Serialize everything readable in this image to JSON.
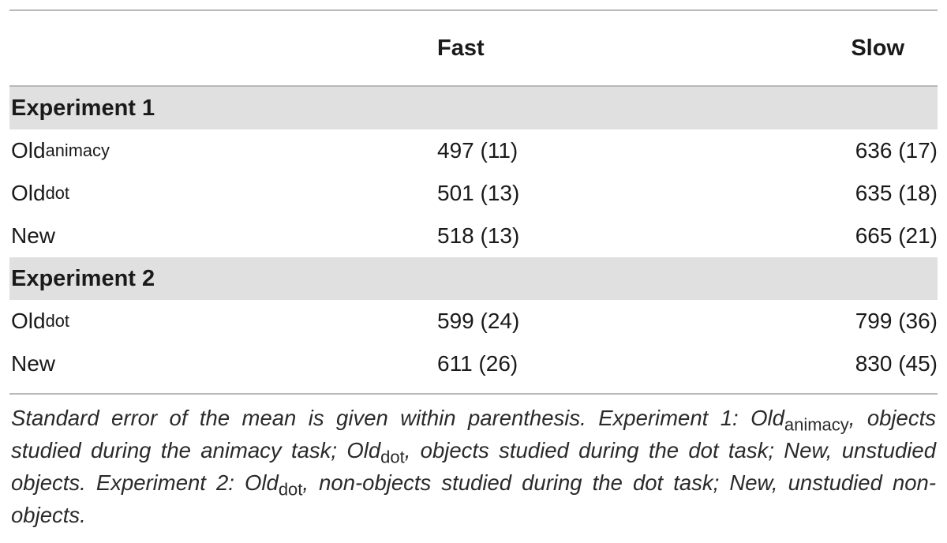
{
  "table": {
    "columns": [
      "",
      "Fast",
      "Slow"
    ],
    "sections": [
      {
        "title": "Experiment 1",
        "rows": [
          {
            "label_base": "Old",
            "label_sub": "animacy",
            "fast": "497 (11)",
            "slow": "636 (17)"
          },
          {
            "label_base": "Old",
            "label_sub": "dot",
            "fast": "501 (13)",
            "slow": "635 (18)"
          },
          {
            "label_base": "New",
            "label_sub": "",
            "fast": "518 (13)",
            "slow": "665 (21)"
          }
        ]
      },
      {
        "title": "Experiment 2",
        "rows": [
          {
            "label_base": "Old",
            "label_sub": "dot",
            "fast": "599 (24)",
            "slow": "799 (36)"
          },
          {
            "label_base": "New",
            "label_sub": "",
            "fast": "611 (26)",
            "slow": "830 (45)"
          }
        ]
      }
    ]
  },
  "caption": {
    "p1": "Standard error of the mean is given within parenthesis. Experiment 1: Old",
    "s1": "animacy",
    "p2": ", objects studied during the animacy task; Old",
    "s2": "dot",
    "p3": ", objects studied during the dot task; New, unstudied objects. Experiment 2: Old",
    "s3": "dot",
    "p4": ", non-objects studied during the dot task; New, unstudied non-objects."
  }
}
